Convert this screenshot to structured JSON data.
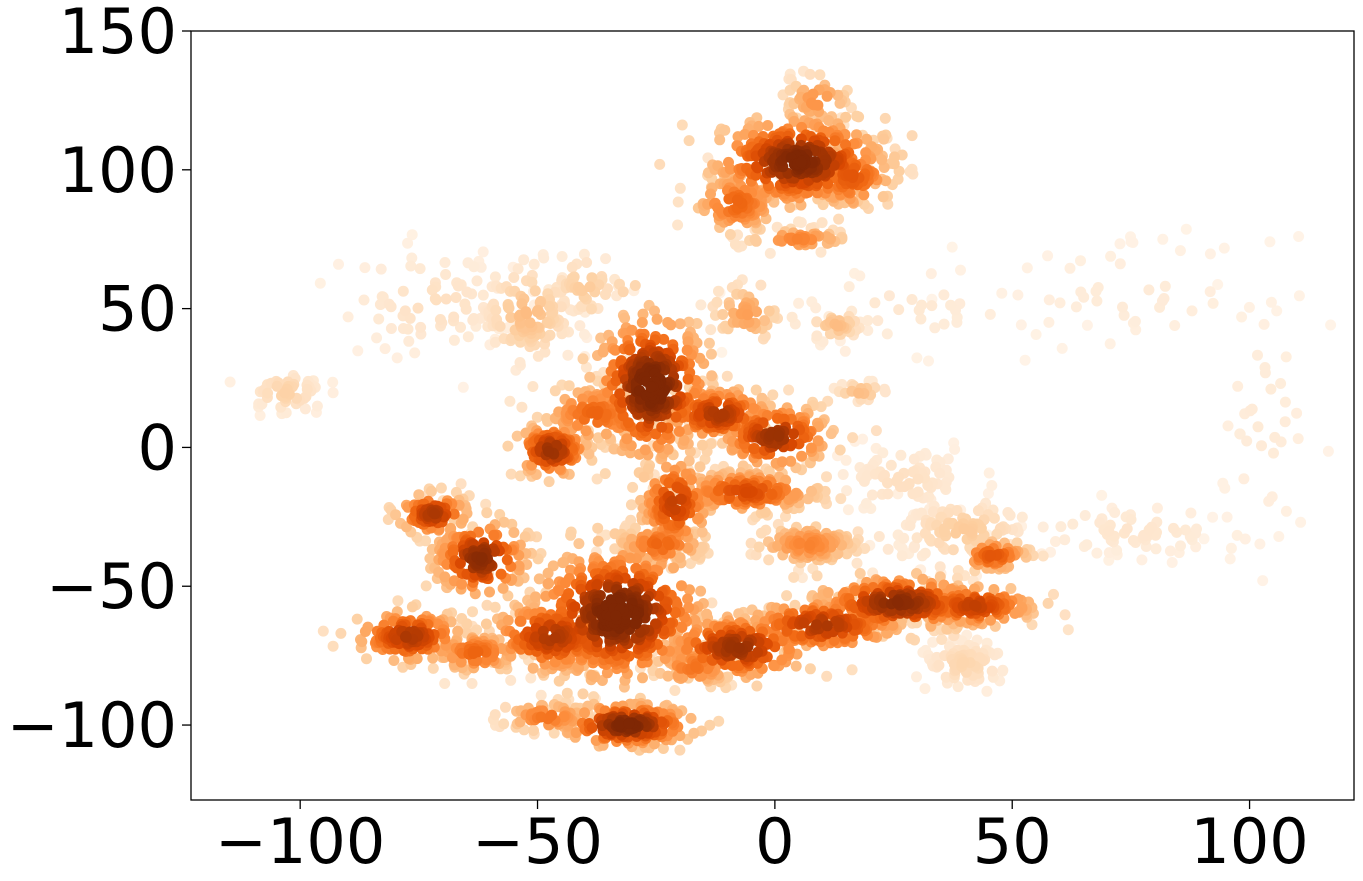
{
  "chart_data": {
    "type": "scatter",
    "title": "",
    "xlabel": "",
    "ylabel": "",
    "xlim": [
      -123,
      122
    ],
    "ylim": [
      -127,
      150
    ],
    "grid": false,
    "legend": "none",
    "colormap": [
      "#fff5eb",
      "#fee6ce",
      "#fdd0a2",
      "#fdae6b",
      "#fd8d3c",
      "#f16913",
      "#d94801",
      "#a63603",
      "#7f2704"
    ],
    "x_ticks": [
      {
        "value": -100,
        "label": "−100"
      },
      {
        "value": -50,
        "label": "−50"
      },
      {
        "value": 0,
        "label": "0"
      },
      {
        "value": 50,
        "label": "50"
      },
      {
        "value": 100,
        "label": "100"
      }
    ],
    "y_ticks": [
      {
        "value": 150,
        "label": "150"
      },
      {
        "value": 100,
        "label": "100"
      },
      {
        "value": 50,
        "label": "50"
      },
      {
        "value": 0,
        "label": "0"
      },
      {
        "value": -50,
        "label": "−50"
      },
      {
        "value": -100,
        "label": "−100"
      }
    ],
    "clusters": [
      {
        "x": 5,
        "y": 103,
        "sx": 9,
        "sy": 8,
        "density": 0.95,
        "n": 320
      },
      {
        "x": -8,
        "y": 88,
        "sx": 5,
        "sy": 6,
        "density": 0.6,
        "n": 110
      },
      {
        "x": 16,
        "y": 98,
        "sx": 5,
        "sy": 7,
        "density": 0.65,
        "n": 100
      },
      {
        "x": 9,
        "y": 125,
        "sx": 4,
        "sy": 5,
        "density": 0.45,
        "n": 50
      },
      {
        "x": 5,
        "y": 75,
        "sx": 6,
        "sy": 2,
        "density": 0.5,
        "n": 50
      },
      {
        "x": -26,
        "y": 22,
        "sx": 6,
        "sy": 13,
        "density": 1.0,
        "n": 320
      },
      {
        "x": -12,
        "y": 12,
        "sx": 6,
        "sy": 5,
        "density": 0.8,
        "n": 150
      },
      {
        "x": 0,
        "y": 4,
        "sx": 6,
        "sy": 6,
        "density": 0.85,
        "n": 150
      },
      {
        "x": -38,
        "y": 12,
        "sx": 6,
        "sy": 6,
        "density": 0.6,
        "n": 100
      },
      {
        "x": -47,
        "y": -1,
        "sx": 4,
        "sy": 5,
        "density": 0.85,
        "n": 110
      },
      {
        "x": -33,
        "y": -60,
        "sx": 9,
        "sy": 12,
        "density": 1.0,
        "n": 420
      },
      {
        "x": -47,
        "y": -68,
        "sx": 7,
        "sy": 7,
        "density": 0.8,
        "n": 170
      },
      {
        "x": -62,
        "y": -40,
        "sx": 5,
        "sy": 7,
        "density": 0.9,
        "n": 150
      },
      {
        "x": -72,
        "y": -24,
        "sx": 4,
        "sy": 4,
        "density": 0.8,
        "n": 90
      },
      {
        "x": -77,
        "y": -68,
        "sx": 6,
        "sy": 5,
        "density": 0.8,
        "n": 140
      },
      {
        "x": -63,
        "y": -74,
        "sx": 5,
        "sy": 4,
        "density": 0.6,
        "n": 80
      },
      {
        "x": -31,
        "y": -100,
        "sx": 7,
        "sy": 4,
        "density": 0.95,
        "n": 170
      },
      {
        "x": -48,
        "y": -97,
        "sx": 5,
        "sy": 3,
        "density": 0.55,
        "n": 70
      },
      {
        "x": -21,
        "y": -20,
        "sx": 4,
        "sy": 9,
        "density": 0.75,
        "n": 130
      },
      {
        "x": -24,
        "y": -35,
        "sx": 5,
        "sy": 4,
        "density": 0.6,
        "n": 80
      },
      {
        "x": -8,
        "y": -72,
        "sx": 8,
        "sy": 6,
        "density": 0.85,
        "n": 180
      },
      {
        "x": 10,
        "y": -64,
        "sx": 9,
        "sy": 5,
        "density": 0.8,
        "n": 180
      },
      {
        "x": 26,
        "y": -56,
        "sx": 9,
        "sy": 5,
        "density": 0.9,
        "n": 200
      },
      {
        "x": 42,
        "y": -57,
        "sx": 7,
        "sy": 4,
        "density": 0.75,
        "n": 140
      },
      {
        "x": 46,
        "y": -39,
        "sx": 4,
        "sy": 3,
        "density": 0.65,
        "n": 60
      },
      {
        "x": -6,
        "y": -16,
        "sx": 8,
        "sy": 4,
        "density": 0.7,
        "n": 150
      },
      {
        "x": 7,
        "y": -35,
        "sx": 6,
        "sy": 4,
        "density": 0.5,
        "n": 110
      },
      {
        "x": -17,
        "y": -79,
        "sx": 5,
        "sy": 4,
        "density": 0.55,
        "n": 70
      },
      {
        "x": -52,
        "y": 48,
        "sx": 5,
        "sy": 9,
        "density": 0.3,
        "n": 120
      },
      {
        "x": -40,
        "y": 58,
        "sx": 4,
        "sy": 6,
        "density": 0.25,
        "n": 50
      },
      {
        "x": -72,
        "y": 52,
        "sx": 10,
        "sy": 10,
        "density": 0.15,
        "n": 80
      },
      {
        "x": -103,
        "y": 20,
        "sx": 4,
        "sy": 4,
        "density": 0.22,
        "n": 50
      },
      {
        "x": -6,
        "y": 48,
        "sx": 4,
        "sy": 6,
        "density": 0.4,
        "n": 50
      },
      {
        "x": 13,
        "y": 44,
        "sx": 3,
        "sy": 3,
        "density": 0.3,
        "n": 30
      },
      {
        "x": 18,
        "y": 20,
        "sx": 3,
        "sy": 2,
        "density": 0.3,
        "n": 20
      },
      {
        "x": 40,
        "y": -30,
        "sx": 7,
        "sy": 6,
        "density": 0.25,
        "n": 100
      },
      {
        "x": 40,
        "y": -78,
        "sx": 5,
        "sy": 5,
        "density": 0.2,
        "n": 80
      },
      {
        "x": 27,
        "y": -12,
        "sx": 8,
        "sy": 7,
        "density": 0.15,
        "n": 80
      },
      {
        "x": 75,
        "y": -30,
        "sx": 12,
        "sy": 5,
        "density": 0.12,
        "n": 70
      },
      {
        "x": 75,
        "y": 55,
        "sx": 15,
        "sy": 10,
        "density": 0.08,
        "n": 50
      },
      {
        "x": 103,
        "y": 10,
        "sx": 6,
        "sy": 25,
        "density": 0.08,
        "n": 40
      },
      {
        "x": 25,
        "y": 50,
        "sx": 15,
        "sy": 8,
        "density": 0.1,
        "n": 40
      }
    ]
  }
}
